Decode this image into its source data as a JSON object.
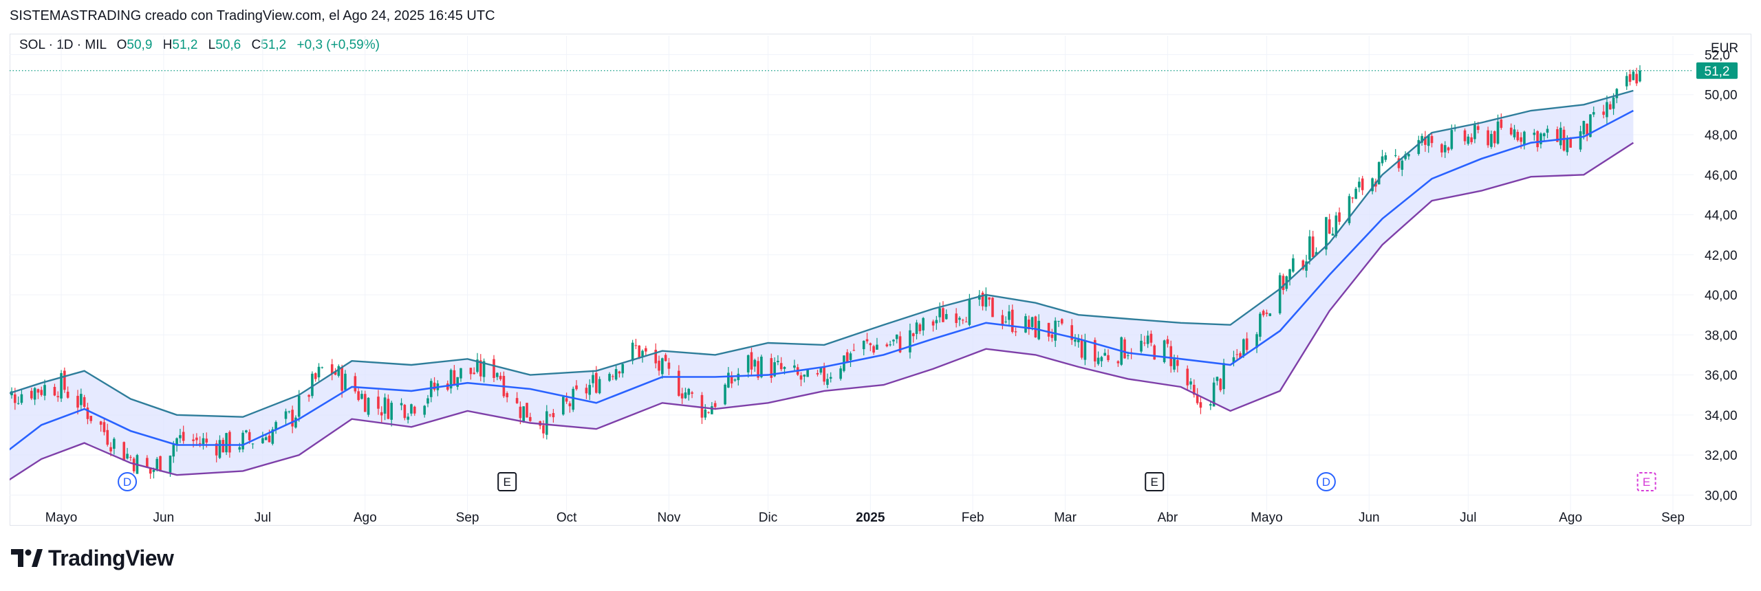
{
  "header": {
    "caption": "SISTEMASTRADING creado con TradingView.com, el Ago 24, 2025 16:45 UTC"
  },
  "legend": {
    "symbol": "SOL · 1D · MIL",
    "open_label": "O",
    "open": "50,9",
    "high_label": "H",
    "high": "51,2",
    "low_label": "L",
    "low": "50,6",
    "close_label": "C",
    "close": "51,2",
    "change": "+0,3 (+0,59%)"
  },
  "currency": "EUR",
  "last_price": "51,2",
  "brand": {
    "name": "TradingView"
  },
  "colors": {
    "up": "#089981",
    "down": "#f23645",
    "basis": "#2962ff",
    "upper_band": "#2e7d9a",
    "lower_band": "#7e3fa8",
    "band_fill": "#dde3ff",
    "event_dividend": "#2962ff",
    "event_earnings": "#131722",
    "event_future": "#d63ad8"
  },
  "chart_data": {
    "type": "candlestick",
    "title": "SOL · 1D · MIL",
    "x_ticks": [
      {
        "label": "Mayo",
        "date": "2024-05-01"
      },
      {
        "label": "Jun",
        "date": "2024-06-01"
      },
      {
        "label": "Jul",
        "date": "2024-07-01"
      },
      {
        "label": "Ago",
        "date": "2024-08-01"
      },
      {
        "label": "Sep",
        "date": "2024-09-01"
      },
      {
        "label": "Oct",
        "date": "2024-10-01"
      },
      {
        "label": "Nov",
        "date": "2024-11-01"
      },
      {
        "label": "Dic",
        "date": "2024-12-01"
      },
      {
        "label": "2025",
        "date": "2025-01-01",
        "bold": true
      },
      {
        "label": "Feb",
        "date": "2025-02-01"
      },
      {
        "label": "Mar",
        "date": "2025-03-01"
      },
      {
        "label": "Abr",
        "date": "2025-04-01"
      },
      {
        "label": "Mayo",
        "date": "2025-05-01"
      },
      {
        "label": "Jun",
        "date": "2025-06-01"
      },
      {
        "label": "Jul",
        "date": "2025-07-01"
      },
      {
        "label": "Ago",
        "date": "2025-08-01"
      },
      {
        "label": "Sep",
        "date": "2025-09-01"
      }
    ],
    "y_ticks": [
      "30,00",
      "32,00",
      "34,00",
      "36,00",
      "38,00",
      "40,00",
      "42,00",
      "44,00",
      "46,00",
      "48,00",
      "50,00",
      "52,0"
    ],
    "y_tick_values": [
      30,
      32,
      34,
      36,
      38,
      40,
      42,
      44,
      46,
      48,
      50,
      52
    ],
    "ylim": [
      29.6,
      52.6
    ],
    "grid": true,
    "last_close": 51.2,
    "series": [
      {
        "role": "basis",
        "points": [
          [
            "2024-04-10",
            31.6
          ],
          [
            "2024-04-25",
            33.5
          ],
          [
            "2024-05-08",
            34.3
          ],
          [
            "2024-05-22",
            33.2
          ],
          [
            "2024-06-05",
            32.5
          ],
          [
            "2024-06-25",
            32.5
          ],
          [
            "2024-07-12",
            33.8
          ],
          [
            "2024-07-28",
            35.4
          ],
          [
            "2024-08-15",
            35.2
          ],
          [
            "2024-09-01",
            35.6
          ],
          [
            "2024-09-20",
            35.3
          ],
          [
            "2024-10-10",
            34.6
          ],
          [
            "2024-10-30",
            35.9
          ],
          [
            "2024-11-15",
            35.9
          ],
          [
            "2024-12-01",
            36.0
          ],
          [
            "2024-12-18",
            36.4
          ],
          [
            "2025-01-05",
            37.0
          ],
          [
            "2025-01-20",
            37.8
          ],
          [
            "2025-02-05",
            38.6
          ],
          [
            "2025-02-20",
            38.3
          ],
          [
            "2025-03-05",
            37.8
          ],
          [
            "2025-03-20",
            37.1
          ],
          [
            "2025-04-05",
            36.8
          ],
          [
            "2025-04-20",
            36.5
          ],
          [
            "2025-05-05",
            38.2
          ],
          [
            "2025-05-20",
            41.0
          ],
          [
            "2025-06-05",
            43.8
          ],
          [
            "2025-06-20",
            45.8
          ],
          [
            "2025-07-05",
            46.8
          ],
          [
            "2025-07-20",
            47.6
          ],
          [
            "2025-08-05",
            47.9
          ],
          [
            "2025-08-20",
            49.2
          ]
        ]
      },
      {
        "role": "upper",
        "points": [
          [
            "2024-04-10",
            34.8
          ],
          [
            "2024-04-25",
            35.6
          ],
          [
            "2024-05-08",
            36.2
          ],
          [
            "2024-05-22",
            34.8
          ],
          [
            "2024-06-05",
            34.0
          ],
          [
            "2024-06-25",
            33.9
          ],
          [
            "2024-07-12",
            35.0
          ],
          [
            "2024-07-28",
            36.7
          ],
          [
            "2024-08-15",
            36.5
          ],
          [
            "2024-09-01",
            36.8
          ],
          [
            "2024-09-20",
            36.0
          ],
          [
            "2024-10-10",
            36.2
          ],
          [
            "2024-10-30",
            37.2
          ],
          [
            "2024-11-15",
            37.0
          ],
          [
            "2024-12-01",
            37.6
          ],
          [
            "2024-12-18",
            37.5
          ],
          [
            "2025-01-05",
            38.5
          ],
          [
            "2025-01-20",
            39.3
          ],
          [
            "2025-02-05",
            40.0
          ],
          [
            "2025-02-20",
            39.6
          ],
          [
            "2025-03-05",
            39.0
          ],
          [
            "2025-03-20",
            38.8
          ],
          [
            "2025-04-05",
            38.6
          ],
          [
            "2025-04-20",
            38.5
          ],
          [
            "2025-05-05",
            40.3
          ],
          [
            "2025-05-20",
            42.6
          ],
          [
            "2025-06-05",
            46.0
          ],
          [
            "2025-06-20",
            48.1
          ],
          [
            "2025-07-05",
            48.6
          ],
          [
            "2025-07-20",
            49.2
          ],
          [
            "2025-08-05",
            49.5
          ],
          [
            "2025-08-20",
            50.2
          ]
        ]
      },
      {
        "role": "lower",
        "points": [
          [
            "2024-04-10",
            30.2
          ],
          [
            "2024-04-25",
            31.8
          ],
          [
            "2024-05-08",
            32.6
          ],
          [
            "2024-05-22",
            31.6
          ],
          [
            "2024-06-05",
            31.0
          ],
          [
            "2024-06-25",
            31.2
          ],
          [
            "2024-07-12",
            32.0
          ],
          [
            "2024-07-28",
            33.8
          ],
          [
            "2024-08-15",
            33.4
          ],
          [
            "2024-09-01",
            34.2
          ],
          [
            "2024-09-20",
            33.6
          ],
          [
            "2024-10-10",
            33.3
          ],
          [
            "2024-10-30",
            34.6
          ],
          [
            "2024-11-15",
            34.3
          ],
          [
            "2024-12-01",
            34.6
          ],
          [
            "2024-12-18",
            35.2
          ],
          [
            "2025-01-05",
            35.5
          ],
          [
            "2025-01-20",
            36.3
          ],
          [
            "2025-02-05",
            37.3
          ],
          [
            "2025-02-20",
            37.0
          ],
          [
            "2025-03-05",
            36.4
          ],
          [
            "2025-03-20",
            35.8
          ],
          [
            "2025-04-05",
            35.4
          ],
          [
            "2025-04-20",
            34.2
          ],
          [
            "2025-05-05",
            35.2
          ],
          [
            "2025-05-20",
            39.2
          ],
          [
            "2025-06-05",
            42.5
          ],
          [
            "2025-06-20",
            44.7
          ],
          [
            "2025-07-05",
            45.2
          ],
          [
            "2025-07-20",
            45.9
          ],
          [
            "2025-08-05",
            46.0
          ],
          [
            "2025-08-20",
            47.6
          ]
        ]
      }
    ],
    "price_path": [
      [
        "2024-04-10",
        34.6
      ],
      [
        "2024-04-20",
        35.2
      ],
      [
        "2024-05-01",
        35.5
      ],
      [
        "2024-05-10",
        34.0
      ],
      [
        "2024-05-18",
        32.4
      ],
      [
        "2024-05-28",
        31.1
      ],
      [
        "2024-06-05",
        32.8
      ],
      [
        "2024-06-20",
        32.5
      ],
      [
        "2024-07-01",
        32.9
      ],
      [
        "2024-07-10",
        33.9
      ],
      [
        "2024-07-20",
        36.5
      ],
      [
        "2024-08-01",
        34.8
      ],
      [
        "2024-08-05",
        34.4
      ],
      [
        "2024-08-15",
        34.5
      ],
      [
        "2024-08-28",
        36.0
      ],
      [
        "2024-09-10",
        36.3
      ],
      [
        "2024-09-15",
        34.5
      ],
      [
        "2024-09-25",
        33.6
      ],
      [
        "2024-10-10",
        35.7
      ],
      [
        "2024-10-22",
        37.3
      ],
      [
        "2024-11-02",
        35.8
      ],
      [
        "2024-11-12",
        34.2
      ],
      [
        "2024-11-25",
        36.6
      ],
      [
        "2024-12-05",
        36.2
      ],
      [
        "2024-12-15",
        35.5
      ],
      [
        "2024-12-28",
        37.4
      ],
      [
        "2025-01-10",
        37.6
      ],
      [
        "2025-01-25",
        39.2
      ],
      [
        "2025-02-05",
        39.4
      ],
      [
        "2025-02-15",
        38.5
      ],
      [
        "2025-03-01",
        38.0
      ],
      [
        "2025-03-10",
        36.8
      ],
      [
        "2025-03-22",
        37.5
      ],
      [
        "2025-04-01",
        37.2
      ],
      [
        "2025-04-07",
        35.5
      ],
      [
        "2025-04-10",
        34.2
      ],
      [
        "2025-04-20",
        36.4
      ],
      [
        "2025-05-01",
        39.5
      ],
      [
        "2025-05-15",
        42.5
      ],
      [
        "2025-06-01",
        45.8
      ],
      [
        "2025-06-15",
        47.5
      ],
      [
        "2025-07-01",
        47.8
      ],
      [
        "2025-07-15",
        48.2
      ],
      [
        "2025-08-01",
        47.6
      ],
      [
        "2025-08-10",
        48.8
      ],
      [
        "2025-08-22",
        51.2
      ]
    ],
    "events": [
      {
        "type": "dividend",
        "label": "D",
        "date": "2024-05-21"
      },
      {
        "type": "earnings",
        "label": "E",
        "date": "2024-09-13"
      },
      {
        "type": "earnings",
        "label": "E",
        "date": "2025-03-28"
      },
      {
        "type": "dividend",
        "label": "D",
        "date": "2025-05-19"
      },
      {
        "type": "future-earnings",
        "label": "E",
        "date": "2025-08-24"
      }
    ]
  }
}
